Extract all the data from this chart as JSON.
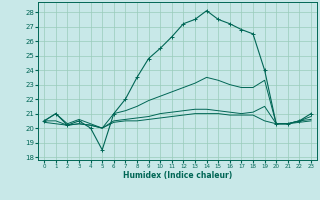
{
  "bg_color": "#c8e8e8",
  "grid_color": "#99ccbb",
  "line_color": "#006655",
  "xlabel": "Humidex (Indice chaleur)",
  "xlim": [
    -0.5,
    23.5
  ],
  "ylim": [
    17.8,
    28.7
  ],
  "yticks": [
    18,
    19,
    20,
    21,
    22,
    23,
    24,
    25,
    26,
    27,
    28
  ],
  "xticks": [
    0,
    1,
    2,
    3,
    4,
    5,
    6,
    7,
    8,
    9,
    10,
    11,
    12,
    13,
    14,
    15,
    16,
    17,
    18,
    19,
    20,
    21,
    22,
    23
  ],
  "curve1_x": [
    0,
    1,
    2,
    3,
    4,
    5,
    6,
    7,
    8,
    9,
    10,
    11,
    12,
    13,
    14,
    15,
    16,
    17,
    18,
    19,
    20,
    21,
    22,
    23
  ],
  "curve1_y": [
    20.5,
    21.0,
    20.2,
    20.5,
    20.0,
    18.5,
    21.0,
    22.0,
    23.5,
    24.8,
    25.5,
    26.3,
    27.2,
    27.5,
    28.1,
    27.5,
    27.2,
    26.8,
    26.5,
    24.0,
    20.3,
    20.3,
    20.5,
    21.0
  ],
  "curve2_x": [
    0,
    1,
    2,
    3,
    4,
    5,
    6,
    7,
    8,
    9,
    10,
    11,
    12,
    13,
    14,
    15,
    16,
    17,
    18,
    19,
    20,
    21,
    22,
    23
  ],
  "curve2_y": [
    20.5,
    21.0,
    20.3,
    20.6,
    20.3,
    20.0,
    21.0,
    21.2,
    21.5,
    21.9,
    22.2,
    22.5,
    22.8,
    23.1,
    23.5,
    23.3,
    23.0,
    22.8,
    22.8,
    23.3,
    20.3,
    20.3,
    20.5,
    20.8
  ],
  "curve3_x": [
    0,
    1,
    2,
    3,
    4,
    5,
    6,
    7,
    8,
    9,
    10,
    11,
    12,
    13,
    14,
    15,
    16,
    17,
    18,
    19,
    20,
    21,
    22,
    23
  ],
  "curve3_y": [
    20.5,
    20.5,
    20.2,
    20.3,
    20.2,
    20.0,
    20.5,
    20.6,
    20.7,
    20.8,
    21.0,
    21.1,
    21.2,
    21.3,
    21.3,
    21.2,
    21.1,
    21.0,
    21.1,
    21.5,
    20.3,
    20.3,
    20.5,
    20.6
  ],
  "curve4_x": [
    0,
    1,
    2,
    3,
    4,
    5,
    6,
    7,
    8,
    9,
    10,
    11,
    12,
    13,
    14,
    15,
    16,
    17,
    18,
    19,
    20,
    21,
    22,
    23
  ],
  "curve4_y": [
    20.4,
    20.3,
    20.2,
    20.3,
    20.2,
    20.0,
    20.4,
    20.5,
    20.5,
    20.6,
    20.7,
    20.8,
    20.9,
    21.0,
    21.0,
    21.0,
    20.9,
    20.9,
    20.9,
    20.5,
    20.3,
    20.3,
    20.4,
    20.5
  ]
}
